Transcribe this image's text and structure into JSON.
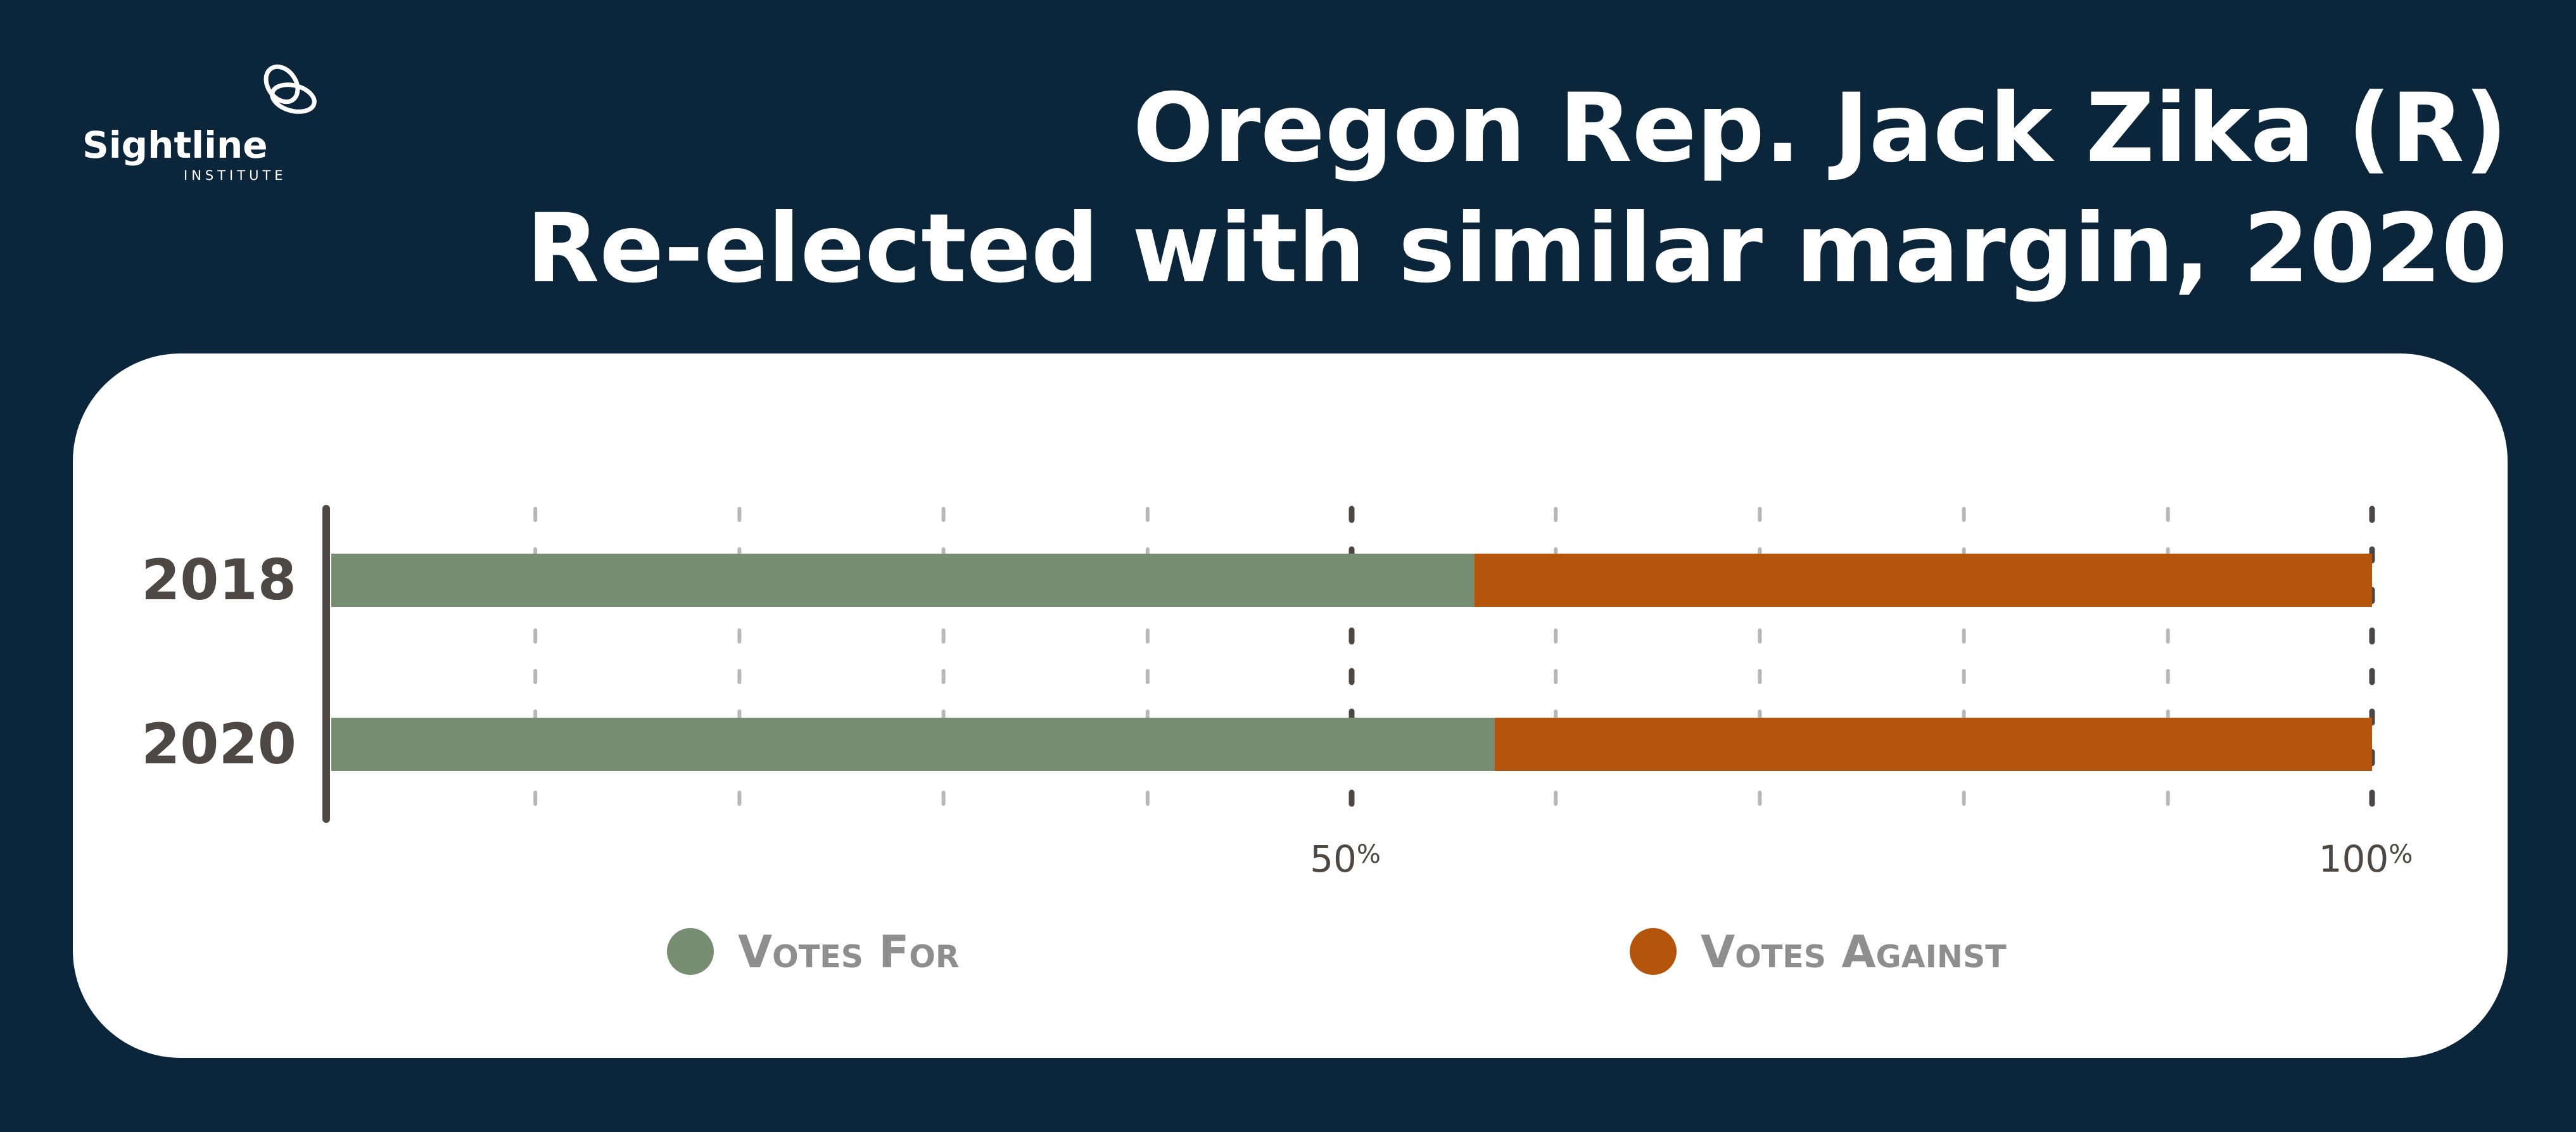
{
  "logo": {
    "name": "Sightline",
    "sub": "INSTITUTE"
  },
  "title": {
    "line1": "Oregon Rep. Jack Zika (R)",
    "line2": "Re-elected with similar margin, 2020"
  },
  "colors": {
    "background": "#0b253a",
    "votes_for": "#778e72",
    "votes_against": "#b5550d",
    "axis": "#4e4844",
    "legend_text": "#8e8e8e"
  },
  "chart_data": {
    "type": "bar",
    "orientation": "horizontal",
    "stacked": true,
    "categories": [
      "2018",
      "2020"
    ],
    "series": [
      {
        "name": "Votes For",
        "values": [
          56,
          57
        ]
      },
      {
        "name": "Votes Against",
        "values": [
          44,
          43
        ]
      }
    ],
    "xlim": [
      0,
      100
    ],
    "ticks": [
      {
        "value": 50,
        "label": "50",
        "suffix": "%"
      },
      {
        "value": 100,
        "label": "100",
        "suffix": "%"
      }
    ],
    "grid_step": 10,
    "legend": {
      "position": "bottom",
      "items": [
        "Votes For",
        "Votes Against"
      ]
    }
  }
}
